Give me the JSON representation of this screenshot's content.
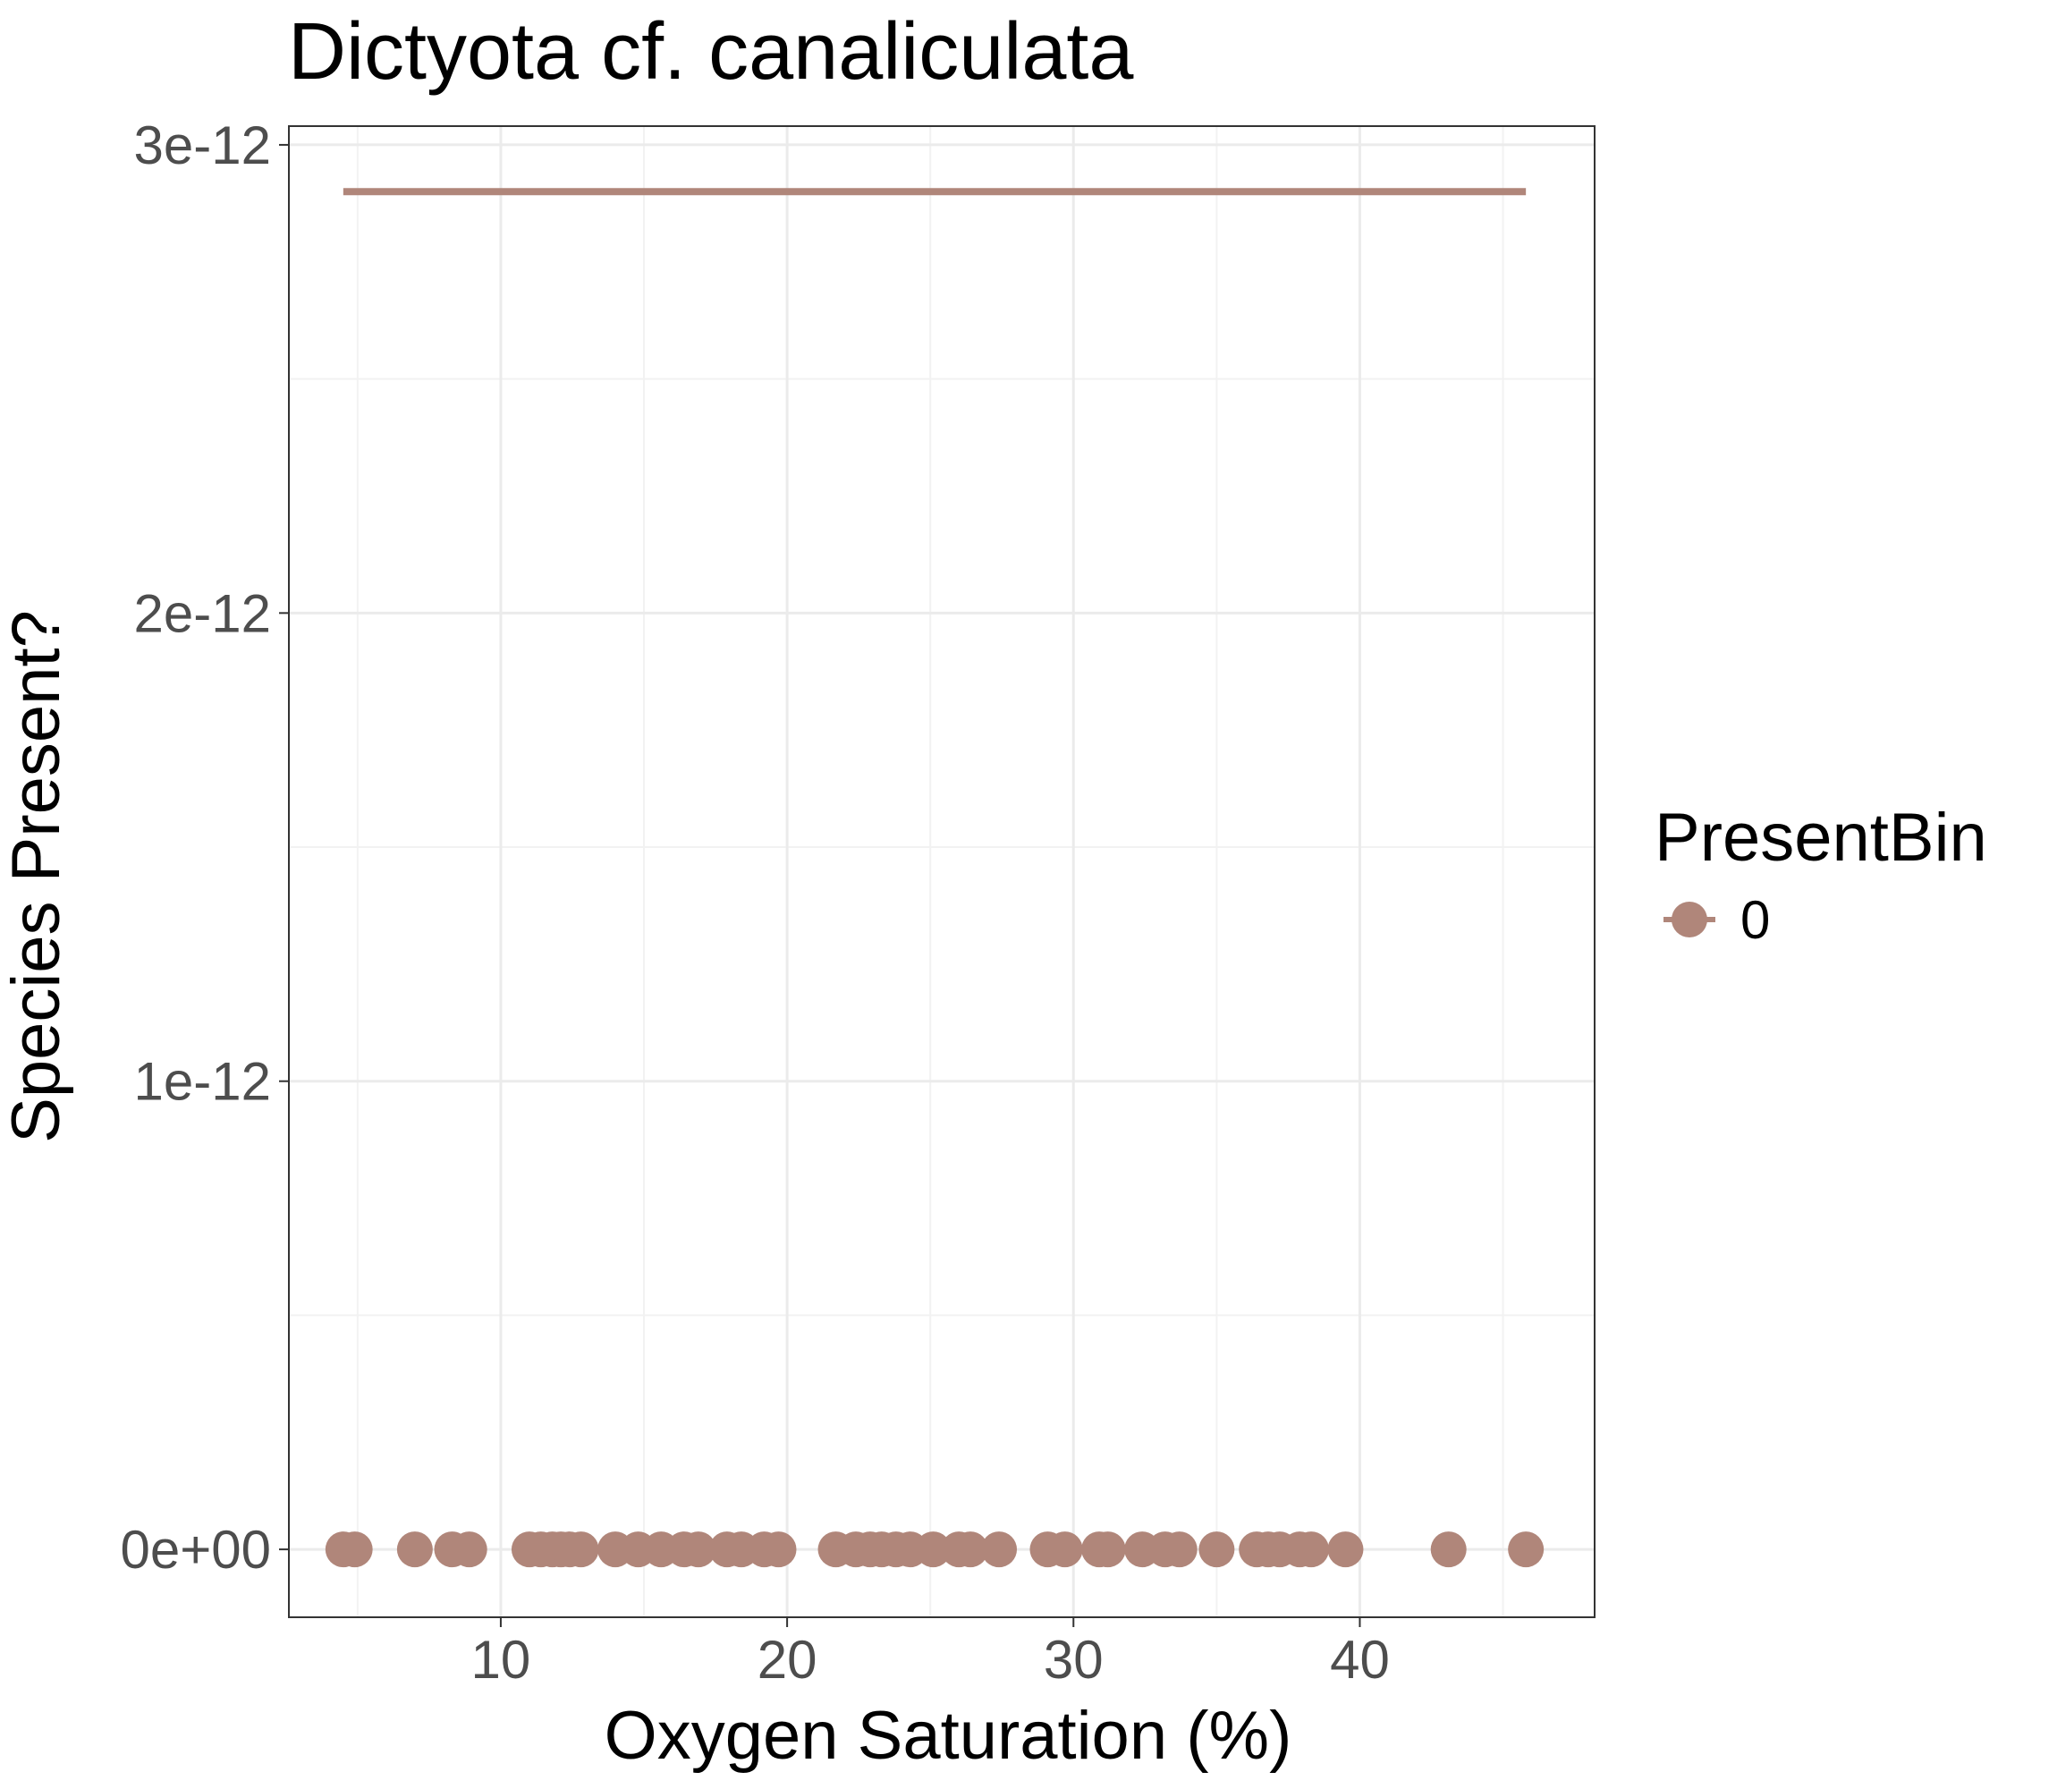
{
  "chart_data": {
    "type": "scatter",
    "title": "Dictyota cf. canaliculata",
    "xlabel": "Oxygen Saturation (%)",
    "ylabel": "Species Present?",
    "xlim": [
      2.6,
      48.2
    ],
    "ylim": [
      -1.45e-13,
      3.04e-12
    ],
    "x_ticks": [
      10,
      20,
      30,
      40
    ],
    "x_tick_labels": [
      "10",
      "20",
      "30",
      "40"
    ],
    "y_ticks": [
      0,
      1e-12,
      2e-12,
      3e-12
    ],
    "y_tick_labels": [
      "0e+00",
      "1e-12",
      "2e-12",
      "3e-12"
    ],
    "grid": true,
    "legend": {
      "title": "PresentBin",
      "position": "right",
      "entries": [
        {
          "label": "0",
          "color": "#b0867a"
        }
      ]
    },
    "series": [
      {
        "name": "0",
        "color": "#b0867a",
        "points": [
          {
            "x": 4.5,
            "y": 0
          },
          {
            "x": 4.9,
            "y": 0
          },
          {
            "x": 7.0,
            "y": 0
          },
          {
            "x": 8.3,
            "y": 0
          },
          {
            "x": 8.9,
            "y": 0
          },
          {
            "x": 11.0,
            "y": 0
          },
          {
            "x": 11.4,
            "y": 0
          },
          {
            "x": 11.8,
            "y": 0
          },
          {
            "x": 12.1,
            "y": 0
          },
          {
            "x": 12.4,
            "y": 0
          },
          {
            "x": 12.8,
            "y": 0
          },
          {
            "x": 14.0,
            "y": 0
          },
          {
            "x": 14.8,
            "y": 0
          },
          {
            "x": 15.6,
            "y": 0
          },
          {
            "x": 16.4,
            "y": 0
          },
          {
            "x": 16.9,
            "y": 0
          },
          {
            "x": 17.9,
            "y": 0
          },
          {
            "x": 18.4,
            "y": 0
          },
          {
            "x": 19.2,
            "y": 0
          },
          {
            "x": 19.7,
            "y": 0
          },
          {
            "x": 21.7,
            "y": 0
          },
          {
            "x": 22.4,
            "y": 0
          },
          {
            "x": 22.9,
            "y": 0
          },
          {
            "x": 23.3,
            "y": 0
          },
          {
            "x": 23.8,
            "y": 0
          },
          {
            "x": 24.3,
            "y": 0
          },
          {
            "x": 25.1,
            "y": 0
          },
          {
            "x": 26.0,
            "y": 0
          },
          {
            "x": 26.4,
            "y": 0
          },
          {
            "x": 27.4,
            "y": 0
          },
          {
            "x": 29.1,
            "y": 0
          },
          {
            "x": 29.7,
            "y": 0
          },
          {
            "x": 30.9,
            "y": 0
          },
          {
            "x": 31.2,
            "y": 0
          },
          {
            "x": 32.4,
            "y": 0
          },
          {
            "x": 33.2,
            "y": 0
          },
          {
            "x": 33.7,
            "y": 0
          },
          {
            "x": 35.0,
            "y": 0
          },
          {
            "x": 36.4,
            "y": 0
          },
          {
            "x": 36.8,
            "y": 0
          },
          {
            "x": 37.2,
            "y": 0
          },
          {
            "x": 37.9,
            "y": 0
          },
          {
            "x": 38.3,
            "y": 0
          },
          {
            "x": 39.5,
            "y": 0
          },
          {
            "x": 43.1,
            "y": 0
          },
          {
            "x": 45.8,
            "y": 0
          }
        ]
      }
    ],
    "fit_line": {
      "name": "0",
      "color": "#b0867a",
      "x": [
        4.5,
        45.8
      ],
      "y": [
        2.9e-12,
        2.9e-12
      ]
    }
  }
}
